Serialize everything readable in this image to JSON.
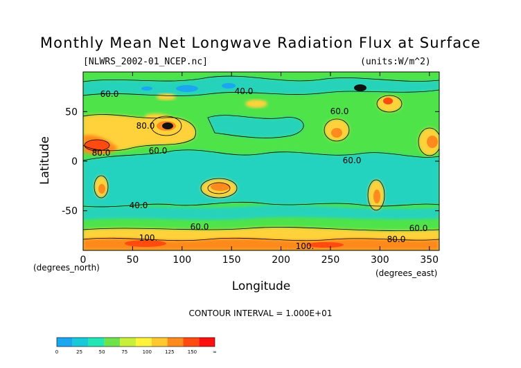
{
  "title": "Monthly Mean Net Longwave Radiation Flux at Surface",
  "file_label": "[NLWRS_2002-01_NCEP.nc]",
  "units_label": "(units:W/m^2)",
  "xlabel": "Longitude",
  "ylabel": "Latitude",
  "x_unit_label": "(degrees_east)",
  "y_unit_label": "(degrees_north)",
  "contour_interval_label": "CONTOUR INTERVAL = 1.000E+01",
  "chart_data": {
    "type": "heatmap",
    "title": "Monthly Mean Net Longwave Radiation Flux at Surface",
    "xlabel": "Longitude",
    "ylabel": "Latitude",
    "xlim": [
      0,
      360
    ],
    "ylim": [
      -90,
      90
    ],
    "x_ticks": [
      0,
      50,
      100,
      150,
      200,
      250,
      300,
      350
    ],
    "y_ticks": [
      50,
      0,
      -50
    ],
    "contour_labels": [
      "60.0",
      "60.0",
      "60.0",
      "60.0",
      "80.0",
      "40.0",
      "40.0",
      "60.0",
      "60.0",
      "80.0",
      "100.",
      "100.",
      "80.0"
    ],
    "colorbar": {
      "ticks": [
        "0",
        "25",
        "50",
        "75",
        "100",
        "125",
        "150",
        "∞"
      ],
      "colors": [
        "#1aa7f0",
        "#18c9d8",
        "#22e6b3",
        "#6ee24a",
        "#c8f03a",
        "#fff33b",
        "#ffc82e",
        "#ff8a1e",
        "#ff4a10",
        "#ff1010"
      ]
    },
    "colors": {
      "low": "#18c9d8",
      "mid": "#4fe34a",
      "high": "#ffd23a",
      "peak": "#ff3a10"
    }
  }
}
